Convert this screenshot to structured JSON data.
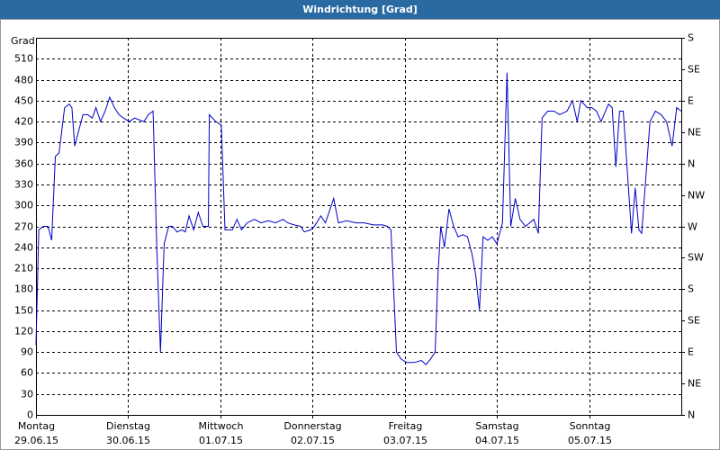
{
  "chart_data": {
    "type": "line",
    "title": "Windrichtung [Grad]",
    "y_label": "Grad",
    "color": "#0000c8",
    "grid": true,
    "x": [
      0,
      0.03,
      0.08,
      0.13,
      0.17,
      0.21,
      0.25,
      0.31,
      0.36,
      0.39,
      0.42,
      0.47,
      0.51,
      0.56,
      0.61,
      0.65,
      0.7,
      0.75,
      0.8,
      0.85,
      0.9,
      0.95,
      1.01,
      1.07,
      1.17,
      1.22,
      1.27,
      1.31,
      1.35,
      1.39,
      1.44,
      1.48,
      1.53,
      1.58,
      1.62,
      1.66,
      1.71,
      1.76,
      1.81,
      1.87,
      1.88,
      1.95,
      2.01,
      2.05,
      2.13,
      2.18,
      2.23,
      2.29,
      2.37,
      2.44,
      2.52,
      2.6,
      2.68,
      2.73,
      2.8,
      2.87,
      2.91,
      2.98,
      3.02,
      3.09,
      3.14,
      3.23,
      3.28,
      3.37,
      3.47,
      3.56,
      3.66,
      3.76,
      3.81,
      3.85,
      3.91,
      3.96,
      4.02,
      4.1,
      4.18,
      4.23,
      4.28,
      4.33,
      4.36,
      4.39,
      4.43,
      4.48,
      4.53,
      4.58,
      4.63,
      4.68,
      4.73,
      4.77,
      4.81,
      4.85,
      4.9,
      4.95,
      5.0,
      5.06,
      5.11,
      5.15,
      5.2,
      5.25,
      5.31,
      5.4,
      5.45,
      5.49,
      5.55,
      5.62,
      5.68,
      5.76,
      5.82,
      5.87,
      5.91,
      5.98,
      6.03,
      6.08,
      6.13,
      6.21,
      6.25,
      6.29,
      6.33,
      6.37,
      6.46,
      6.5,
      6.54,
      6.57,
      6.66,
      6.72,
      6.78,
      6.84,
      6.9,
      6.95,
      7.0
    ],
    "values": [
      100,
      265,
      270,
      270,
      250,
      370,
      375,
      440,
      445,
      440,
      385,
      410,
      430,
      430,
      425,
      440,
      420,
      435,
      455,
      440,
      430,
      425,
      420,
      425,
      420,
      430,
      435,
      240,
      90,
      245,
      270,
      270,
      262,
      265,
      262,
      285,
      265,
      290,
      270,
      270,
      430,
      420,
      415,
      265,
      265,
      280,
      265,
      275,
      280,
      275,
      278,
      275,
      280,
      275,
      272,
      270,
      262,
      265,
      270,
      285,
      275,
      310,
      275,
      278,
      275,
      275,
      272,
      272,
      270,
      265,
      90,
      80,
      75,
      75,
      78,
      72,
      80,
      90,
      200,
      270,
      240,
      295,
      270,
      255,
      258,
      255,
      230,
      200,
      150,
      255,
      250,
      255,
      245,
      275,
      490,
      270,
      310,
      280,
      270,
      280,
      260,
      425,
      435,
      435,
      430,
      435,
      450,
      420,
      450,
      440,
      440,
      435,
      420,
      445,
      440,
      355,
      435,
      435,
      260,
      325,
      265,
      260,
      420,
      435,
      430,
      420,
      385,
      440,
      435
    ],
    "xlim": [
      0,
      7
    ],
    "xticks": [
      {
        "value": 0,
        "label": [
          "Montag",
          "29.06.15"
        ]
      },
      {
        "value": 1,
        "label": [
          "Dienstag",
          "30.06.15"
        ]
      },
      {
        "value": 2,
        "label": [
          "Mittwoch",
          "01.07.15"
        ]
      },
      {
        "value": 3,
        "label": [
          "Donnerstag",
          "02.07.15"
        ]
      },
      {
        "value": 4,
        "label": [
          "Freitag",
          "03.07.15"
        ]
      },
      {
        "value": 5,
        "label": [
          "Samstag",
          "04.07.15"
        ]
      },
      {
        "value": 6,
        "label": [
          "Sonntag",
          "05.07.15"
        ]
      }
    ],
    "ylim": [
      0,
      540
    ],
    "yticks": [
      0,
      30,
      60,
      90,
      120,
      150,
      180,
      210,
      240,
      270,
      300,
      330,
      360,
      390,
      420,
      450,
      480,
      510
    ],
    "y2lim": [
      0,
      540
    ],
    "y2ticks": [
      {
        "value": 0,
        "label": "N"
      },
      {
        "value": 45,
        "label": "NE"
      },
      {
        "value": 90,
        "label": "E"
      },
      {
        "value": 135,
        "label": "SE"
      },
      {
        "value": 180,
        "label": "S"
      },
      {
        "value": 225,
        "label": "SW"
      },
      {
        "value": 270,
        "label": "W"
      },
      {
        "value": 315,
        "label": "NW"
      },
      {
        "value": 360,
        "label": "N"
      },
      {
        "value": 405,
        "label": "NE"
      },
      {
        "value": 450,
        "label": "E"
      },
      {
        "value": 495,
        "label": "SE"
      },
      {
        "value": 540,
        "label": "S"
      }
    ]
  }
}
